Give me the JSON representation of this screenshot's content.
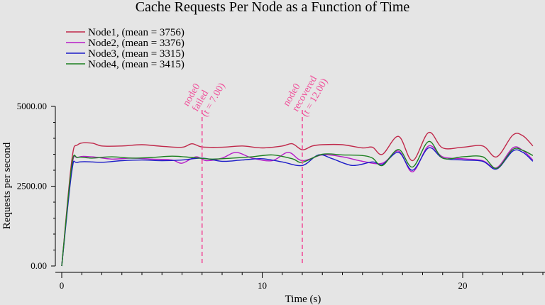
{
  "chart_data": {
    "type": "line",
    "title": "Cache Requests Per Node as a Function of Time",
    "xlabel": "Time (s)",
    "ylabel": "Requests per second",
    "xlim": [
      0,
      24
    ],
    "ylim": [
      0,
      5000
    ],
    "x_ticks": [
      0,
      10,
      20
    ],
    "y_ticks": [
      0,
      2500,
      5000
    ],
    "x_tick_labels": [
      "0",
      "10",
      "20"
    ],
    "y_tick_labels": [
      "0.00",
      "2500.00",
      "5000.00"
    ],
    "grid": false,
    "legend_position": "top-left",
    "series": [
      {
        "name": "Node1, (mean = 3756)",
        "color": "#c0284a",
        "points": [
          [
            0,
            0
          ],
          [
            0.5,
            3300
          ],
          [
            0.8,
            3800
          ],
          [
            1.5,
            3850
          ],
          [
            2,
            3760
          ],
          [
            3,
            3760
          ],
          [
            4,
            3800
          ],
          [
            5,
            3750
          ],
          [
            6,
            3720
          ],
          [
            6.5,
            3830
          ],
          [
            7,
            3730
          ],
          [
            8,
            3720
          ],
          [
            9,
            3760
          ],
          [
            10,
            3700
          ],
          [
            11,
            3760
          ],
          [
            11.5,
            3830
          ],
          [
            12,
            3640
          ],
          [
            12.5,
            3760
          ],
          [
            13,
            3800
          ],
          [
            14,
            3800
          ],
          [
            15,
            3700
          ],
          [
            15.5,
            3720
          ],
          [
            16,
            3500
          ],
          [
            16.8,
            4060
          ],
          [
            17.5,
            3300
          ],
          [
            18.3,
            4180
          ],
          [
            19,
            3700
          ],
          [
            20,
            3720
          ],
          [
            21,
            3760
          ],
          [
            21.7,
            3420
          ],
          [
            22.5,
            4100
          ],
          [
            23,
            4080
          ],
          [
            23.5,
            3760
          ]
        ]
      },
      {
        "name": "Node2, (mean = 3376)",
        "color": "#b61cc8",
        "points": [
          [
            0,
            0
          ],
          [
            0.5,
            3100
          ],
          [
            0.8,
            3400
          ],
          [
            1.5,
            3420
          ],
          [
            2.5,
            3350
          ],
          [
            3.5,
            3380
          ],
          [
            4.5,
            3350
          ],
          [
            5.5,
            3320
          ],
          [
            6,
            3220
          ],
          [
            6.7,
            3420
          ],
          [
            7.2,
            3300
          ],
          [
            8,
            3380
          ],
          [
            8.7,
            3560
          ],
          [
            9.5,
            3380
          ],
          [
            10.5,
            3300
          ],
          [
            11.3,
            3560
          ],
          [
            12,
            3300
          ],
          [
            13,
            3480
          ],
          [
            14,
            3420
          ],
          [
            15,
            3280
          ],
          [
            16,
            3220
          ],
          [
            16.8,
            3600
          ],
          [
            17.5,
            2950
          ],
          [
            18.3,
            3760
          ],
          [
            19,
            3420
          ],
          [
            20,
            3360
          ],
          [
            21,
            3300
          ],
          [
            21.7,
            3080
          ],
          [
            22.5,
            3700
          ],
          [
            23,
            3620
          ],
          [
            23.5,
            3320
          ]
        ]
      },
      {
        "name": "Node3, (mean = 3315)",
        "color": "#1c1cc8",
        "points": [
          [
            0,
            0
          ],
          [
            0.5,
            2950
          ],
          [
            0.8,
            3250
          ],
          [
            2,
            3250
          ],
          [
            3,
            3300
          ],
          [
            4,
            3320
          ],
          [
            5,
            3300
          ],
          [
            6,
            3320
          ],
          [
            7,
            3380
          ],
          [
            8,
            3280
          ],
          [
            9,
            3320
          ],
          [
            10,
            3360
          ],
          [
            11,
            3260
          ],
          [
            12,
            3150
          ],
          [
            12.8,
            3480
          ],
          [
            13.5,
            3360
          ],
          [
            14.5,
            3150
          ],
          [
            15.5,
            3260
          ],
          [
            16,
            3180
          ],
          [
            16.8,
            3560
          ],
          [
            17.5,
            3000
          ],
          [
            18.3,
            3700
          ],
          [
            19,
            3380
          ],
          [
            20,
            3320
          ],
          [
            21,
            3280
          ],
          [
            21.7,
            3040
          ],
          [
            22.5,
            3600
          ],
          [
            23,
            3560
          ],
          [
            23.5,
            3280
          ]
        ]
      },
      {
        "name": "Node4, (mean = 3415)",
        "color": "#1c8020",
        "points": [
          [
            0,
            0
          ],
          [
            0.5,
            3150
          ],
          [
            0.8,
            3400
          ],
          [
            1.5,
            3380
          ],
          [
            2.5,
            3420
          ],
          [
            3.5,
            3380
          ],
          [
            4.5,
            3400
          ],
          [
            5.5,
            3440
          ],
          [
            6.5,
            3400
          ],
          [
            7.5,
            3350
          ],
          [
            8.5,
            3380
          ],
          [
            9.5,
            3420
          ],
          [
            10.5,
            3480
          ],
          [
            11.5,
            3360
          ],
          [
            12,
            3250
          ],
          [
            13,
            3500
          ],
          [
            14,
            3480
          ],
          [
            15,
            3460
          ],
          [
            15.5,
            3380
          ],
          [
            16,
            3150
          ],
          [
            16.8,
            3650
          ],
          [
            17.5,
            3100
          ],
          [
            18.3,
            3900
          ],
          [
            19,
            3380
          ],
          [
            20,
            3420
          ],
          [
            21,
            3420
          ],
          [
            21.7,
            3060
          ],
          [
            22.5,
            3650
          ],
          [
            23,
            3620
          ],
          [
            23.5,
            3460
          ]
        ]
      }
    ],
    "annotations": [
      {
        "x": 7,
        "color": "#f0509a",
        "lines": [
          "node0",
          "failed",
          "(t = 7.00)"
        ]
      },
      {
        "x": 12,
        "color": "#f0509a",
        "lines": [
          "node0",
          "recovered",
          "(t = 12.00)"
        ]
      }
    ]
  }
}
